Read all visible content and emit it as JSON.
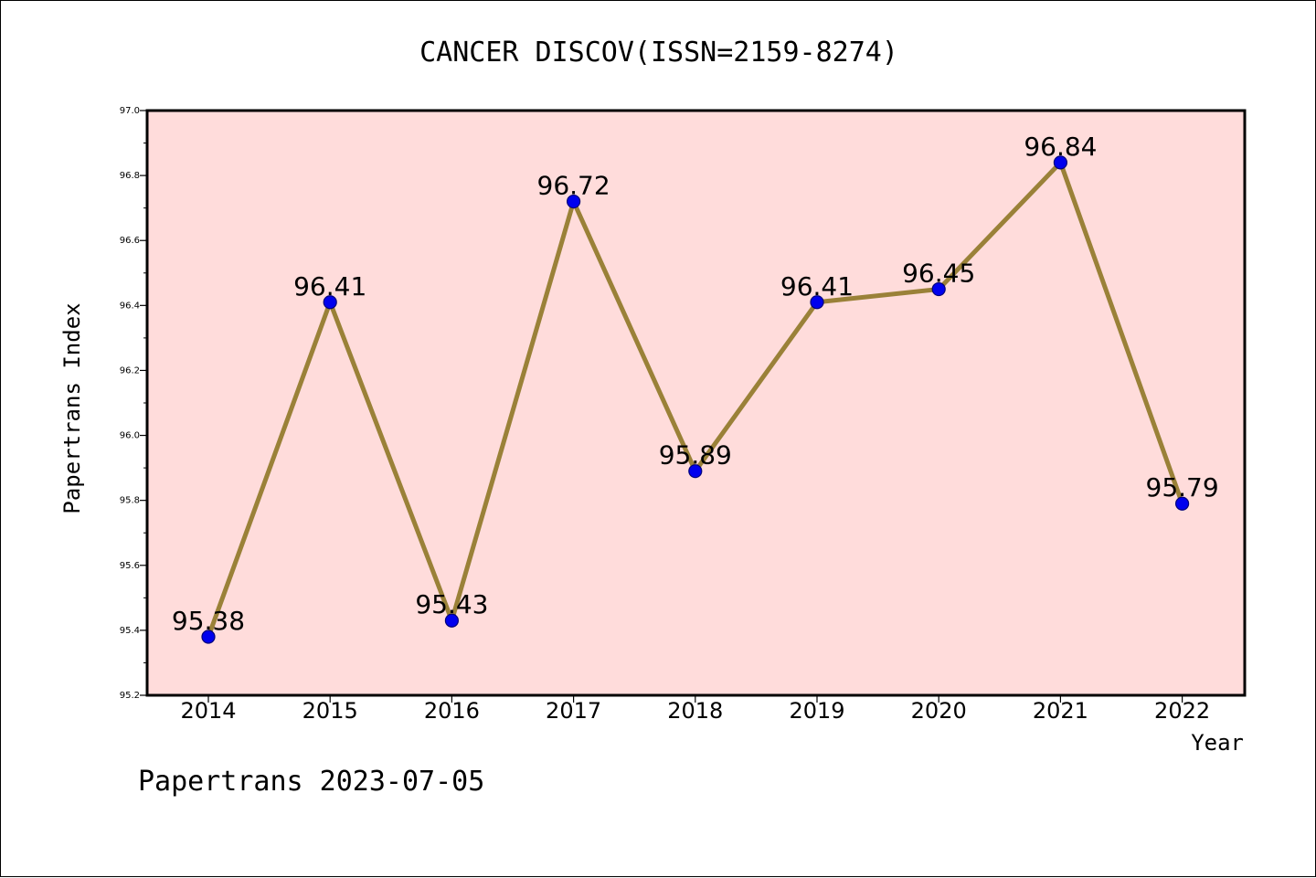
{
  "chart_data": {
    "type": "line",
    "title": "CANCER DISCOV(ISSN=2159-8274)",
    "xlabel": "Year",
    "ylabel": "Papertrans Index",
    "categories": [
      "2014",
      "2015",
      "2016",
      "2017",
      "2018",
      "2019",
      "2020",
      "2021",
      "2022"
    ],
    "series": [
      {
        "values": [
          95.38,
          96.41,
          95.43,
          96.72,
          95.89,
          96.41,
          96.45,
          96.84,
          95.79
        ],
        "labels": [
          "95.38",
          "96.41",
          "95.43",
          "96.72",
          "95.89",
          "96.41",
          "96.45",
          "96.84",
          "95.79"
        ]
      }
    ],
    "ylim": [
      95.2,
      97.0
    ],
    "yticks": [
      "95.2",
      "95.4",
      "95.6",
      "95.8",
      "96.0",
      "96.2",
      "96.4",
      "96.6",
      "96.8",
      "97.0"
    ],
    "grid": false,
    "legend": "none",
    "colors": {
      "plot_background": "#ffdcdb",
      "line": "#9a8138",
      "marker": "#0000ee",
      "marker_edge": "#00007a"
    }
  },
  "footer": {
    "watermark": "Papertrans 2023-07-05"
  }
}
